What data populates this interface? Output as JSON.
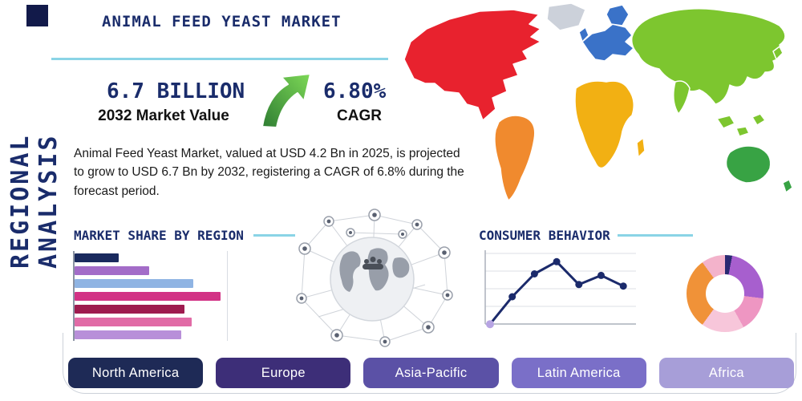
{
  "page": {
    "title": "ANIMAL FEED YEAST MARKET",
    "vertical_label": "REGIONAL ANALYSIS"
  },
  "stats": {
    "market_value": "6.7 BILLION",
    "market_value_caption": "2032 Market Value",
    "cagr_value": "6.80%",
    "cagr_caption": "CAGR"
  },
  "description": "Animal Feed Yeast Market, valued at USD 4.2 Bn in 2025, is projected to grow to USD 6.7 Bn by 2032, registering a CAGR of 6.8% during the forecast period.",
  "sections": {
    "market_share_title": "MARKET SHARE BY REGION",
    "consumer_behavior_title": "CONSUMER BEHAVIOR"
  },
  "regions": [
    {
      "label": "North America",
      "color": "#1e2a56"
    },
    {
      "label": "Europe",
      "color": "#3d2e78"
    },
    {
      "label": "Asia-Pacific",
      "color": "#5b51a6"
    },
    {
      "label": "Latin America",
      "color": "#7a6fc8"
    },
    {
      "label": "Africa",
      "color": "#a79ed8"
    }
  ],
  "map_colors": {
    "north_america": "#e8222e",
    "greenland": "#ccd1da",
    "south_america": "#f08a2e",
    "europe": "#3a72c8",
    "africa": "#f2b013",
    "asia": "#7dc62f",
    "oceania": "#38a344"
  },
  "colors": {
    "accent_line": "#8ad4e6",
    "navy": "#1a2c6b",
    "arrow_green_dark": "#2e7d32",
    "arrow_green_light": "#7ed957"
  },
  "chart_data": [
    {
      "type": "bar",
      "title": "MARKET SHARE BY REGION",
      "orientation": "horizontal",
      "values": [
        29,
        49,
        78,
        96,
        72,
        77,
        70
      ],
      "unit": "percent_of_chart_width_estimated",
      "colors": [
        "#1a2a5e",
        "#a36cc8",
        "#8fb4e3",
        "#d23285",
        "#9e1b4f",
        "#e16ba6",
        "#b88fd9"
      ],
      "note": "no axis tick labels visible in image"
    },
    {
      "type": "line",
      "title": "CONSUMER BEHAVIOR",
      "x": [
        1,
        2,
        3,
        4,
        5,
        6,
        7
      ],
      "values": [
        4,
        40,
        70,
        86,
        56,
        68,
        54
      ],
      "unit": "estimated_0_100_scale",
      "line_color": "#1b2a6b",
      "first_point_color": "#b7a4e3",
      "grid": "horizontal",
      "note": "no axis tick labels visible in image"
    },
    {
      "type": "pie",
      "donut": true,
      "title": "",
      "slices": [
        {
          "color": "#2a2a72",
          "value": 3
        },
        {
          "color": "#a75fce",
          "value": 24
        },
        {
          "color": "#ee96c2",
          "value": 15
        },
        {
          "color": "#f7c6da",
          "value": 18
        },
        {
          "color": "#f09238",
          "value": 30
        },
        {
          "color": "#f3b3cb",
          "value": 10
        }
      ],
      "note": "no slice labels visible in image"
    }
  ]
}
